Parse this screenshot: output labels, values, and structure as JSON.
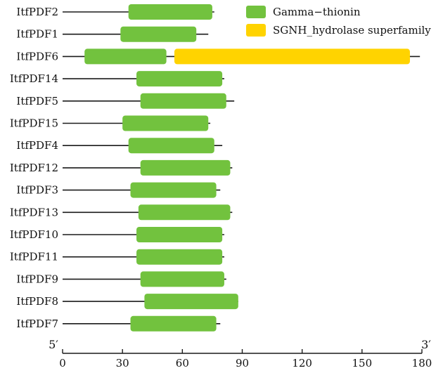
{
  "chart_data": {
    "type": "domain-architecture",
    "title": "",
    "xlabel": "",
    "ylabel": "",
    "xlim": [
      0,
      180
    ],
    "ticks": [
      0,
      30,
      60,
      90,
      120,
      150,
      180
    ],
    "end_labels": {
      "left": "5′",
      "right": "3′"
    },
    "legend": [
      {
        "key": "gamma",
        "label": "Gamma−thionin",
        "color": "#72C23E"
      },
      {
        "key": "sgnh",
        "label": "SGNH_hydrolase superfamily",
        "color": "#FFD300"
      }
    ],
    "genes": [
      {
        "name": "ItfPDF2",
        "length": 76,
        "domains": [
          {
            "type": "gamma",
            "start": 33,
            "end": 75
          }
        ]
      },
      {
        "name": "ItfPDF1",
        "length": 73,
        "domains": [
          {
            "type": "gamma",
            "start": 29,
            "end": 67
          }
        ]
      },
      {
        "name": "ItfPDF6",
        "length": 179,
        "domains": [
          {
            "type": "gamma",
            "start": 11,
            "end": 52
          },
          {
            "type": "sgnh",
            "start": 56,
            "end": 174
          }
        ]
      },
      {
        "name": "ItfPDF14",
        "length": 81,
        "domains": [
          {
            "type": "gamma",
            "start": 37,
            "end": 80
          }
        ]
      },
      {
        "name": "ItfPDF5",
        "length": 86,
        "domains": [
          {
            "type": "gamma",
            "start": 39,
            "end": 82
          }
        ]
      },
      {
        "name": "ItfPDF15",
        "length": 74,
        "domains": [
          {
            "type": "gamma",
            "start": 30,
            "end": 73
          }
        ]
      },
      {
        "name": "ItfPDF4",
        "length": 80,
        "domains": [
          {
            "type": "gamma",
            "start": 33,
            "end": 76
          }
        ]
      },
      {
        "name": "ItfPDF12",
        "length": 85,
        "domains": [
          {
            "type": "gamma",
            "start": 39,
            "end": 84
          }
        ]
      },
      {
        "name": "ItfPDF3",
        "length": 79,
        "domains": [
          {
            "type": "gamma",
            "start": 34,
            "end": 77
          }
        ]
      },
      {
        "name": "ItfPDF13",
        "length": 85,
        "domains": [
          {
            "type": "gamma",
            "start": 38,
            "end": 84
          }
        ]
      },
      {
        "name": "ItfPDF10",
        "length": 81,
        "domains": [
          {
            "type": "gamma",
            "start": 37,
            "end": 80
          }
        ]
      },
      {
        "name": "ItfPDF11",
        "length": 81,
        "domains": [
          {
            "type": "gamma",
            "start": 37,
            "end": 80
          }
        ]
      },
      {
        "name": "ItfPDF9",
        "length": 82,
        "domains": [
          {
            "type": "gamma",
            "start": 39,
            "end": 81
          }
        ]
      },
      {
        "name": "ItfPDF8",
        "length": 88,
        "domains": [
          {
            "type": "gamma",
            "start": 41,
            "end": 88
          }
        ]
      },
      {
        "name": "ItfPDF7",
        "length": 79,
        "domains": [
          {
            "type": "gamma",
            "start": 34,
            "end": 77
          }
        ]
      }
    ]
  }
}
